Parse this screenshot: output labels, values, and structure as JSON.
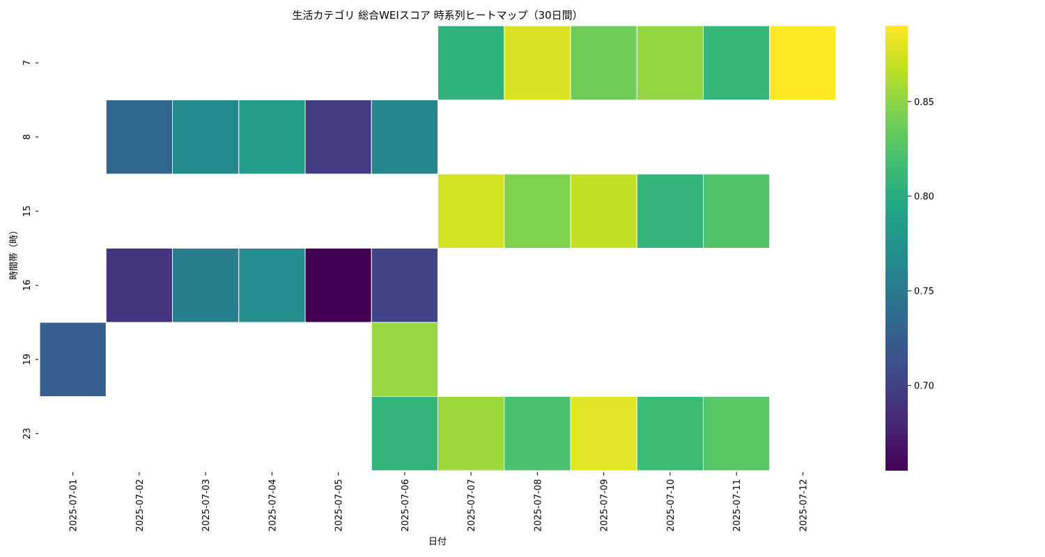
{
  "chart_data": {
    "type": "heatmap",
    "title": "生活カテゴリ 総合WEIスコア 時系列ヒートマップ（30日間）",
    "xlabel": "日付",
    "ylabel": "時間帯（時）",
    "x": [
      "2025-07-01",
      "2025-07-02",
      "2025-07-03",
      "2025-07-04",
      "2025-07-05",
      "2025-07-06",
      "2025-07-07",
      "2025-07-08",
      "2025-07-09",
      "2025-07-10",
      "2025-07-11",
      "2025-07-12"
    ],
    "y": [
      "7",
      "8",
      "15",
      "16",
      "19",
      "23"
    ],
    "values": [
      [
        null,
        null,
        null,
        null,
        null,
        null,
        0.805,
        0.877,
        0.838,
        0.852,
        0.81,
        0.89
      ],
      [
        null,
        0.733,
        0.765,
        0.785,
        0.696,
        0.763,
        null,
        null,
        null,
        null,
        null,
        null
      ],
      [
        null,
        null,
        null,
        null,
        null,
        null,
        0.875,
        0.845,
        0.868,
        0.808,
        0.825,
        null
      ],
      [
        null,
        0.69,
        0.755,
        0.768,
        0.655,
        0.703,
        null,
        null,
        null,
        null,
        null,
        null
      ],
      [
        0.725,
        null,
        null,
        null,
        null,
        0.853,
        null,
        null,
        null,
        null,
        null,
        null
      ],
      [
        null,
        null,
        null,
        null,
        null,
        0.808,
        0.855,
        0.822,
        0.88,
        0.815,
        0.828,
        null
      ]
    ],
    "colormap": "viridis",
    "vmin": 0.655,
    "vmax": 0.89,
    "colorbar_ticks": [
      0.7,
      0.75,
      0.8,
      0.85
    ],
    "colorbar_tick_labels": [
      "0.70",
      "0.75",
      "0.80",
      "0.85"
    ],
    "grid": false,
    "legend": "colorbar-right"
  }
}
